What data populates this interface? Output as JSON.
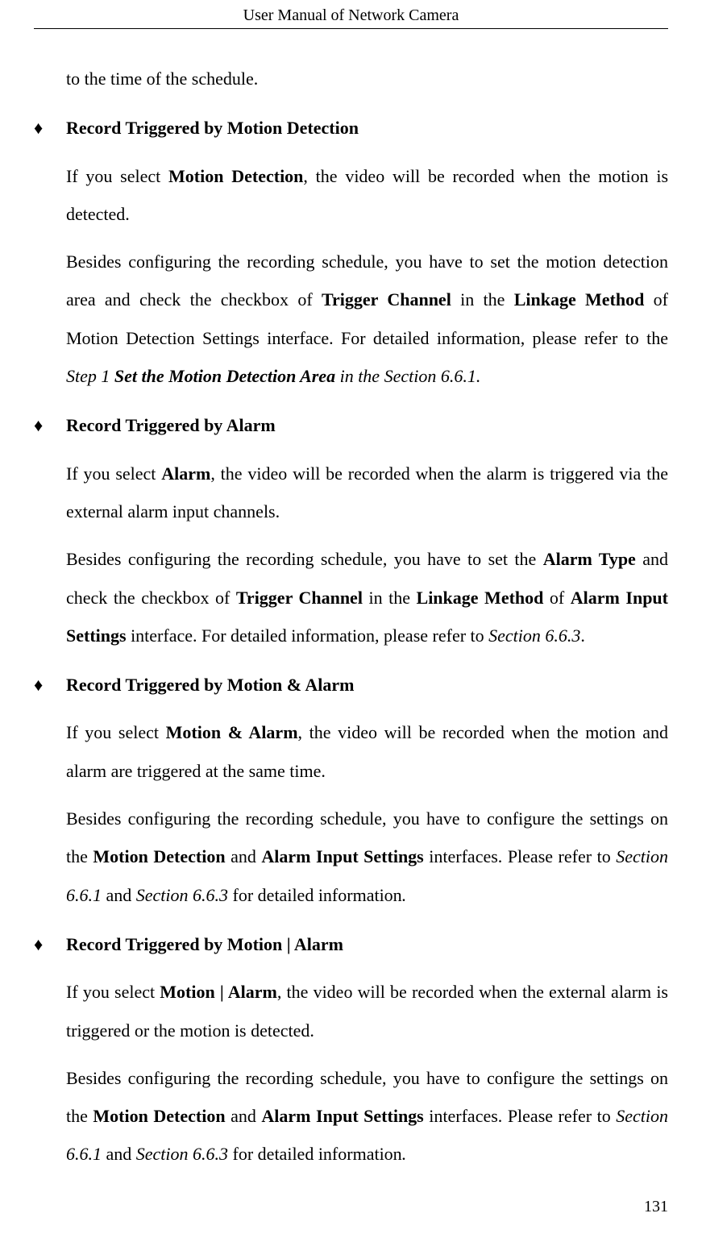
{
  "header": {
    "title": "User Manual of Network Camera"
  },
  "page_number": "131",
  "continuation_line": "to the time of the schedule.",
  "bullets": [
    {
      "title": "Record Triggered by Motion Detection",
      "para1_parts": [
        {
          "t": "If you select ",
          "cls": ""
        },
        {
          "t": "Motion Detection",
          "cls": "bold"
        },
        {
          "t": ", the video will be recorded when the motion is detected.",
          "cls": ""
        }
      ],
      "para2_parts": [
        {
          "t": "Besides configuring the recording schedule, you have to set the motion detection area and check the checkbox of ",
          "cls": ""
        },
        {
          "t": "Trigger Channel",
          "cls": "bold"
        },
        {
          "t": " in the ",
          "cls": ""
        },
        {
          "t": "Linkage Method",
          "cls": "bold"
        },
        {
          "t": " of Motion Detection Settings interface. For detailed information, please refer to the ",
          "cls": ""
        },
        {
          "t": "Step 1 ",
          "cls": "italic"
        },
        {
          "t": "Set the Motion Detection Area",
          "cls": "bolditalic"
        },
        {
          "t": " in the Section 6.6.1.",
          "cls": "italic"
        }
      ]
    },
    {
      "title": "Record Triggered by Alarm",
      "para1_parts": [
        {
          "t": "If you select ",
          "cls": ""
        },
        {
          "t": "Alarm",
          "cls": "bold"
        },
        {
          "t": ", the video will be recorded when the alarm is triggered via the external alarm input channels.",
          "cls": ""
        }
      ],
      "para2_parts": [
        {
          "t": "Besides configuring the recording schedule, you have to set the ",
          "cls": ""
        },
        {
          "t": "Alarm Type",
          "cls": "bold"
        },
        {
          "t": " and check the checkbox of ",
          "cls": ""
        },
        {
          "t": "Trigger Channel",
          "cls": "bold"
        },
        {
          "t": " in the ",
          "cls": ""
        },
        {
          "t": "Linkage Method",
          "cls": "bold"
        },
        {
          "t": " of ",
          "cls": ""
        },
        {
          "t": "Alarm Input Settings",
          "cls": "bold"
        },
        {
          "t": " interface. For detailed information, please refer to ",
          "cls": ""
        },
        {
          "t": "Section 6.6.3",
          "cls": "italic"
        },
        {
          "t": ".",
          "cls": ""
        }
      ]
    },
    {
      "title": "Record Triggered by Motion & Alarm",
      "para1_parts": [
        {
          "t": "If you select ",
          "cls": ""
        },
        {
          "t": "Motion & Alarm",
          "cls": "bold"
        },
        {
          "t": ", the video will be recorded when the motion and alarm are triggered at the same time.",
          "cls": ""
        }
      ],
      "para2_parts": [
        {
          "t": "Besides configuring the recording schedule, you have to configure the settings on the ",
          "cls": ""
        },
        {
          "t": "Motion Detection",
          "cls": "bold"
        },
        {
          "t": " and ",
          "cls": ""
        },
        {
          "t": "Alarm Input Settings",
          "cls": "bold"
        },
        {
          "t": " interfaces. Please refer to ",
          "cls": ""
        },
        {
          "t": "Section 6.6.1",
          "cls": "italic"
        },
        {
          "t": " and ",
          "cls": ""
        },
        {
          "t": "Section 6.6.3",
          "cls": "italic"
        },
        {
          "t": " for detailed information",
          "cls": ""
        },
        {
          "t": ".",
          "cls": "italic"
        }
      ]
    },
    {
      "title": "Record Triggered by Motion | Alarm",
      "para1_parts": [
        {
          "t": "If you select ",
          "cls": ""
        },
        {
          "t": "Motion | Alarm",
          "cls": "bold"
        },
        {
          "t": ", the video will be recorded when the external alarm is triggered or the motion is detected.",
          "cls": ""
        }
      ],
      "para2_parts": [
        {
          "t": "Besides configuring the recording schedule, you have to configure the settings on the ",
          "cls": ""
        },
        {
          "t": "Motion Detection",
          "cls": "bold"
        },
        {
          "t": " and ",
          "cls": ""
        },
        {
          "t": "Alarm Input Settings",
          "cls": "bold"
        },
        {
          "t": " interfaces. Please refer to ",
          "cls": ""
        },
        {
          "t": "Section 6.6.1",
          "cls": "italic"
        },
        {
          "t": " and ",
          "cls": ""
        },
        {
          "t": "Section 6.6.3",
          "cls": "italic"
        },
        {
          "t": " for detailed information",
          "cls": ""
        },
        {
          "t": ".",
          "cls": "italic"
        }
      ]
    }
  ]
}
